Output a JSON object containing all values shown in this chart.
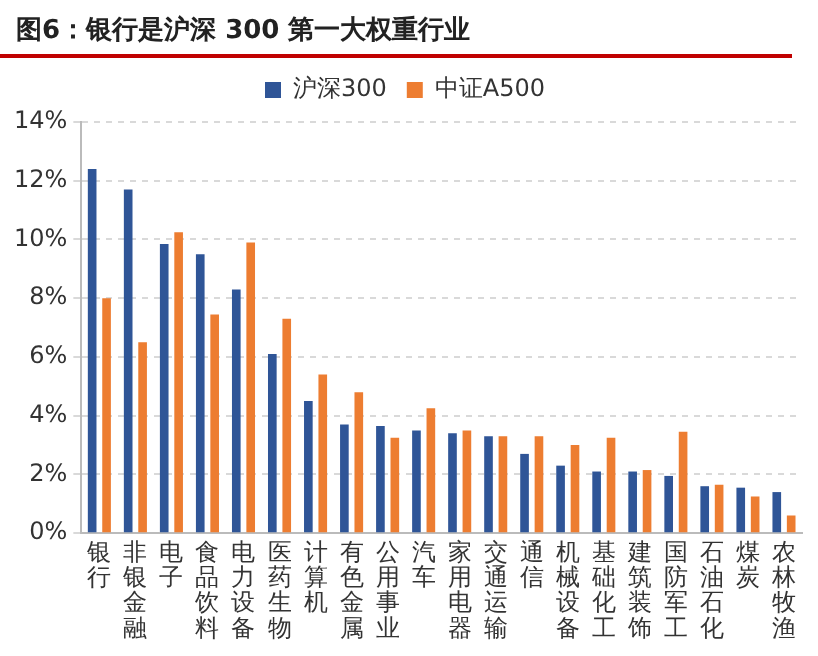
{
  "chart_data": {
    "type": "bar",
    "title": "图6：银行是沪深 300 第一大权重行业",
    "categories": [
      "银行",
      "非银金融",
      "电子",
      "食品饮料",
      "电力设备",
      "医药生物",
      "计算机",
      "有色金属",
      "公用事业",
      "汽车",
      "家用电器",
      "交通运输",
      "通信",
      "机械设备",
      "基础化工",
      "建筑装饰",
      "国防军工",
      "石油石化",
      "煤炭",
      "农林牧渔"
    ],
    "series": [
      {
        "name": "沪深300",
        "color": "#2f5597",
        "values": [
          12.4,
          11.7,
          9.85,
          9.5,
          8.3,
          6.1,
          4.5,
          3.7,
          3.65,
          3.5,
          3.4,
          3.3,
          2.7,
          2.3,
          2.1,
          2.1,
          1.95,
          1.6,
          1.55,
          1.4
        ]
      },
      {
        "name": "中证A500",
        "color": "#ed7d31",
        "values": [
          8.0,
          6.5,
          10.25,
          7.45,
          9.9,
          7.3,
          5.4,
          4.8,
          3.25,
          4.25,
          3.5,
          3.3,
          3.3,
          3.0,
          3.25,
          2.15,
          3.45,
          1.65,
          1.25,
          0.6
        ]
      }
    ],
    "ylim": [
      0,
      14
    ],
    "yticks": [
      {
        "value": 0,
        "label": "0%"
      },
      {
        "value": 2,
        "label": "2%"
      },
      {
        "value": 4,
        "label": "4%"
      },
      {
        "value": 6,
        "label": "6%"
      },
      {
        "value": 8,
        "label": "8%"
      },
      {
        "value": 10,
        "label": "10%"
      },
      {
        "value": 12,
        "label": "12%"
      },
      {
        "value": 14,
        "label": "14%"
      }
    ],
    "grid": "y",
    "legend": "top"
  }
}
